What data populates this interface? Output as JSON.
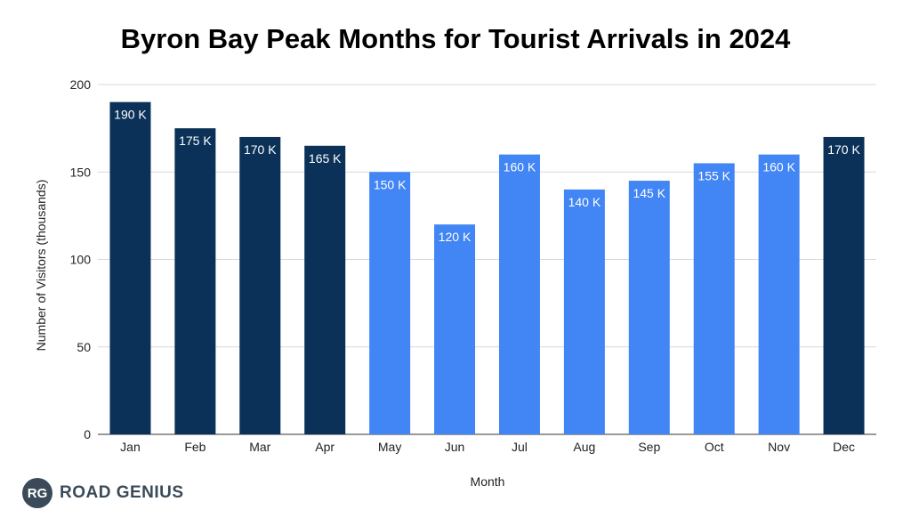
{
  "chart_data": {
    "type": "bar",
    "title": "Byron Bay Peak Months for Tourist Arrivals in 2024",
    "xlabel": "Month",
    "ylabel": "Number of Visitors (thousands)",
    "ylim": [
      0,
      200
    ],
    "yticks": [
      0,
      50,
      100,
      150,
      200
    ],
    "grid": true,
    "categories": [
      "Jan",
      "Feb",
      "Mar",
      "Apr",
      "May",
      "Jun",
      "Jul",
      "Aug",
      "Sep",
      "Oct",
      "Nov",
      "Dec"
    ],
    "values": [
      190,
      175,
      170,
      165,
      150,
      120,
      160,
      140,
      145,
      155,
      160,
      170
    ],
    "data_labels": [
      "190 K",
      "175 K",
      "170 K",
      "165 K",
      "150 K",
      "120 K",
      "160 K",
      "140 K",
      "145 K",
      "155 K",
      "160 K",
      "170 K"
    ],
    "peak": [
      true,
      true,
      true,
      true,
      false,
      false,
      false,
      false,
      false,
      false,
      false,
      true
    ],
    "colors": {
      "peak": "#0b3158",
      "normal": "#4285f4",
      "grid": "#d9d9d9",
      "axis": "#333333"
    }
  },
  "logo": {
    "badge": "RG",
    "text": "ROAD GENIUS"
  }
}
